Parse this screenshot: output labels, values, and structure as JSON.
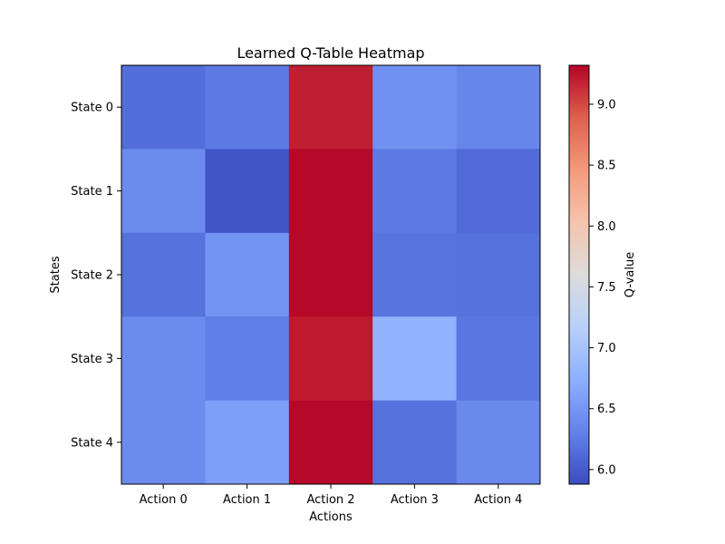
{
  "chart_data": {
    "type": "heatmap",
    "title": "Learned Q-Table Heatmap",
    "xlabel": "Actions",
    "ylabel": "States",
    "x_categories": [
      "Action 0",
      "Action 1",
      "Action 2",
      "Action 3",
      "Action 4"
    ],
    "y_categories": [
      "State 0",
      "State 1",
      "State 2",
      "State 3",
      "State 4"
    ],
    "values": [
      [
        6.15,
        6.25,
        9.2,
        6.45,
        6.35
      ],
      [
        6.4,
        5.95,
        9.3,
        6.25,
        6.12
      ],
      [
        6.18,
        6.48,
        9.3,
        6.2,
        6.18
      ],
      [
        6.4,
        6.28,
        9.22,
        6.78,
        6.22
      ],
      [
        6.4,
        6.58,
        9.3,
        6.18,
        6.38
      ]
    ],
    "colormap": "coolwarm",
    "vmin": 5.88,
    "vmax": 9.32,
    "colorbar": {
      "label": "Q-value",
      "ticks": [
        6.0,
        6.5,
        7.0,
        7.5,
        8.0,
        8.5,
        9.0
      ]
    },
    "grid": false
  }
}
